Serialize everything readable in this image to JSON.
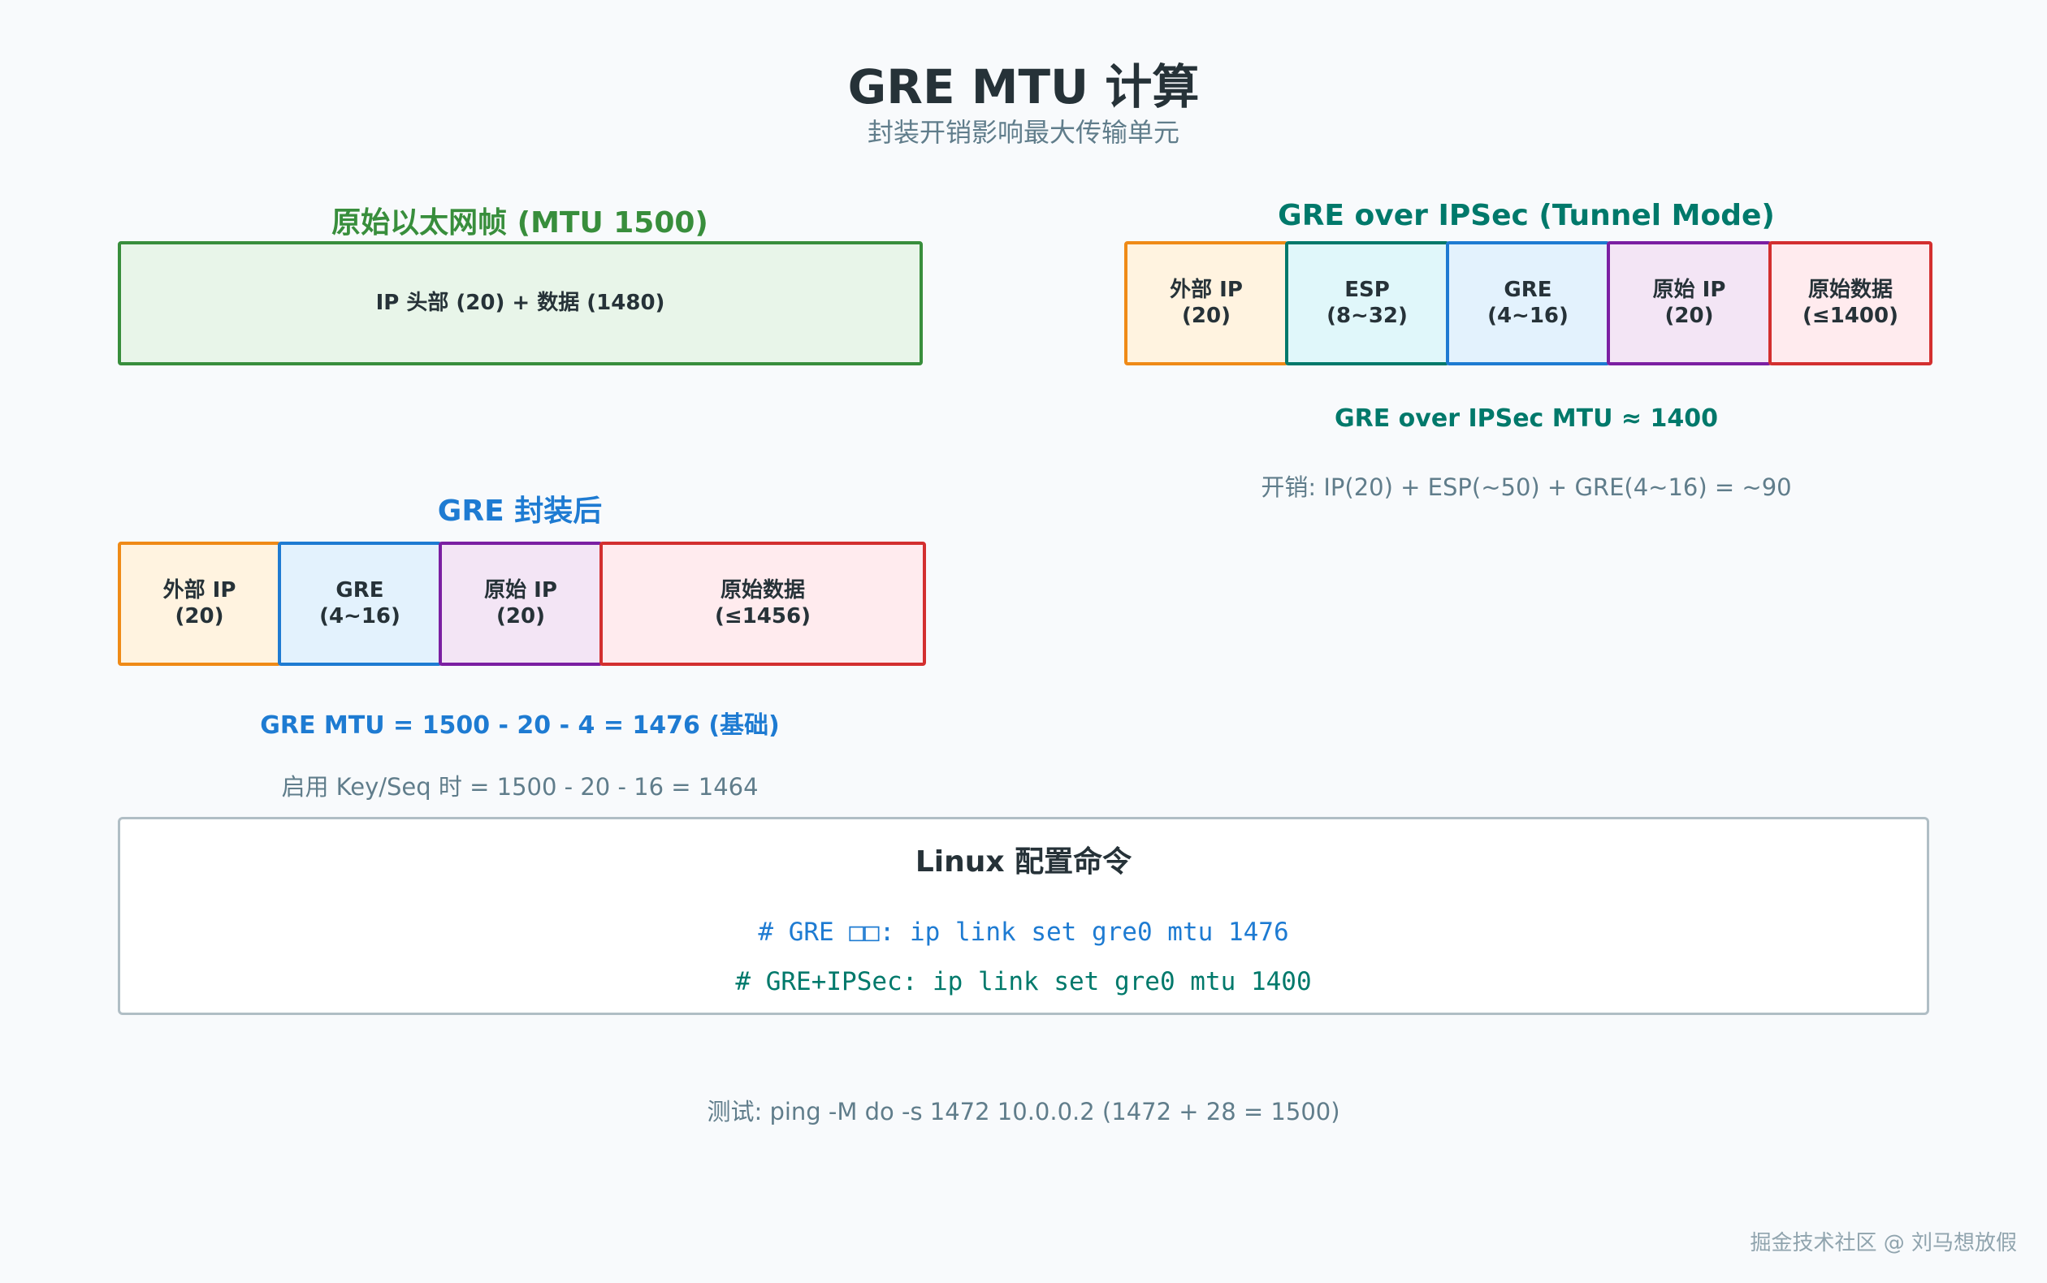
{
  "title": "GRE MTU 计算",
  "subtitle": "封装开销影响最大传输单元",
  "ethernet": {
    "heading": "原始以太网帧 (MTU 1500)",
    "box": "IP 头部 (20) + 数据 (1480)"
  },
  "gre": {
    "heading": "GRE 封装后",
    "segments": [
      {
        "label": "外部 IP\n(20)",
        "border": "#ef8a17",
        "fill": "#fff3e0"
      },
      {
        "label": "GRE\n(4~16)",
        "border": "#1e7bd2",
        "fill": "#e3f2fd"
      },
      {
        "label": "原始 IP\n(20)",
        "border": "#7b1fa2",
        "fill": "#f3e5f5"
      },
      {
        "label": "原始数据\n(≤1456)",
        "border": "#d32f2f",
        "fill": "#ffebee"
      }
    ],
    "mtu": "GRE MTU = 1500 - 20 - 4 = 1476 (基础)",
    "keyseq": "启用 Key/Seq 时 = 1500 - 20 - 16 = 1464"
  },
  "ipsec": {
    "heading": "GRE over IPSec (Tunnel Mode)",
    "segments": [
      {
        "label": "外部 IP\n(20)",
        "border": "#ef8a17",
        "fill": "#fff3e0"
      },
      {
        "label": "ESP\n(8~32)",
        "border": "#00796b",
        "fill": "#e0f7fa"
      },
      {
        "label": "GRE\n(4~16)",
        "border": "#1e7bd2",
        "fill": "#e3f2fd"
      },
      {
        "label": "原始 IP\n(20)",
        "border": "#7b1fa2",
        "fill": "#f3e5f5"
      },
      {
        "label": "原始数据\n(≤1400)",
        "border": "#d32f2f",
        "fill": "#ffebee"
      }
    ],
    "mtu": "GRE over IPSec MTU ≈ 1400",
    "overhead": "开销: IP(20) + ESP(~50) + GRE(4~16) = ~90"
  },
  "linux": {
    "heading": "Linux 配置命令",
    "cmd1": "# GRE □□:  ip link set gre0 mtu 1476",
    "cmd2": "# GRE+IPSec: ip link set gre0 mtu 1400"
  },
  "test": "测试: ping -M do -s 1472 10.0.0.2  (1472 + 28 = 1500)",
  "watermark": "掘金技术社区 @ 刘马想放假",
  "colors": {
    "green": "#388e3c",
    "blue": "#1e7bd2",
    "teal": "#00796b"
  }
}
